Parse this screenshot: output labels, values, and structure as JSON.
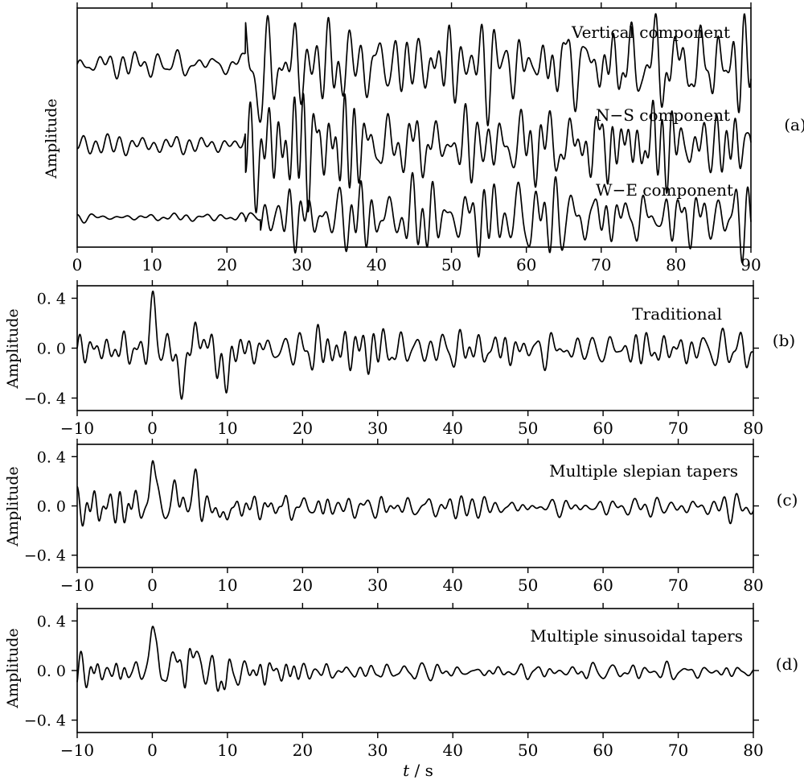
{
  "chart_data": [
    {
      "panel": "(a)",
      "type": "line",
      "ylabel": "Amplitude",
      "xlim": [
        0,
        90
      ],
      "xticks": [
        0,
        10,
        20,
        30,
        40,
        50,
        60,
        70,
        80,
        90
      ],
      "series": [
        {
          "name": "Vertical component"
        },
        {
          "name": "N-S component"
        },
        {
          "name": "W-E component"
        }
      ],
      "onset_s": 22.5
    },
    {
      "panel": "(b)",
      "type": "line",
      "ylabel": "Amplitude",
      "xlim": [
        -10,
        80
      ],
      "ylim": [
        -0.5,
        0.5
      ],
      "xticks": [
        -10,
        0,
        10,
        20,
        30,
        40,
        50,
        60,
        70,
        80
      ],
      "yticks": [
        0.4,
        0.0,
        -0.4
      ],
      "ytick_labels": [
        "0. 4",
        "0. 0",
        "−0. 4"
      ],
      "series": [
        {
          "name": "Traditional"
        }
      ],
      "peaks": [
        {
          "x": 0.2,
          "y": 0.36
        },
        {
          "x": 4.0,
          "y": -0.32
        },
        {
          "x": 5.8,
          "y": 0.22
        },
        {
          "x": 9.7,
          "y": -0.3
        }
      ]
    },
    {
      "panel": "(c)",
      "type": "line",
      "ylabel": "Amplitude",
      "xlim": [
        -10,
        80
      ],
      "ylim": [
        -0.5,
        0.5
      ],
      "xticks": [
        -10,
        0,
        10,
        20,
        30,
        40,
        50,
        60,
        70,
        80
      ],
      "yticks": [
        0.4,
        0.0,
        -0.4
      ],
      "ytick_labels": [
        "0. 4",
        "0. 0",
        "−0. 4"
      ],
      "series": [
        {
          "name": "Multiple slepian tapers"
        }
      ],
      "peaks": [
        {
          "x": 0.0,
          "y": 0.44
        },
        {
          "x": 3.0,
          "y": 0.13
        },
        {
          "x": 5.6,
          "y": 0.24
        },
        {
          "x": 9.5,
          "y": -0.12
        }
      ]
    },
    {
      "panel": "(d)",
      "type": "line",
      "ylabel": "Amplitude",
      "xlabel": "t / s",
      "xlim": [
        -10,
        80
      ],
      "ylim": [
        -0.5,
        0.5
      ],
      "xticks": [
        -10,
        0,
        10,
        20,
        30,
        40,
        50,
        60,
        70,
        80
      ],
      "yticks": [
        0.4,
        0.0,
        -0.4
      ],
      "ytick_labels": [
        "0. 4",
        "0. 0",
        "−0. 4"
      ],
      "series": [
        {
          "name": "Multiple sinusoidal tapers"
        }
      ],
      "peaks": [
        {
          "x": 0.0,
          "y": 0.46
        },
        {
          "x": 3.0,
          "y": 0.12
        },
        {
          "x": 5.6,
          "y": 0.24
        },
        {
          "x": 9.5,
          "y": -0.12
        }
      ]
    }
  ],
  "labels": {
    "panel_a": "(a)",
    "panel_b": "(b)",
    "panel_c": "(c)",
    "panel_d": "(d)",
    "amplitude": "Amplitude",
    "xlabel_var": "t",
    "xlabel_unit": " / s",
    "vertical": "Vertical component",
    "ns": "N−S component",
    "we": "W−E component",
    "traditional": "Traditional",
    "slepian": "Multiple slepian tapers",
    "sinusoidal": "Multiple sinusoidal tapers"
  }
}
